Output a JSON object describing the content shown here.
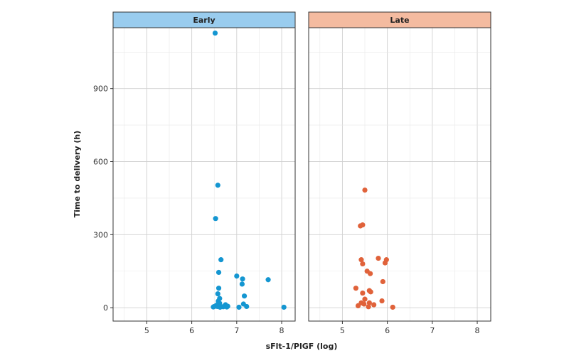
{
  "chart_data": {
    "type": "scatter",
    "xlabel": "sFlt-1/PlGF (log)",
    "ylabel": "Time to delivery (h)",
    "xlim": [
      4.25,
      8.3
    ],
    "ylim": [
      -55,
      1150
    ],
    "x_ticks": [
      5,
      6,
      7,
      8
    ],
    "y_ticks": [
      0,
      300,
      600,
      900
    ],
    "grid": true,
    "panels": [
      {
        "label": "Early",
        "strip_color": "#99CCEE",
        "point_color": "#1496D1",
        "points": [
          [
            6.52,
            1128
          ],
          [
            6.58,
            503
          ],
          [
            6.53,
            366
          ],
          [
            6.65,
            197
          ],
          [
            6.6,
            145
          ],
          [
            7.0,
            130
          ],
          [
            7.13,
            118
          ],
          [
            7.7,
            115
          ],
          [
            7.12,
            97
          ],
          [
            6.6,
            80
          ],
          [
            6.58,
            57
          ],
          [
            7.17,
            48
          ],
          [
            6.62,
            38
          ],
          [
            6.59,
            27
          ],
          [
            6.62,
            18
          ],
          [
            7.15,
            15
          ],
          [
            6.75,
            12
          ],
          [
            6.55,
            10
          ],
          [
            6.5,
            5
          ],
          [
            6.48,
            3
          ],
          [
            6.57,
            5
          ],
          [
            6.63,
            2
          ],
          [
            6.7,
            4
          ],
          [
            6.78,
            3
          ],
          [
            6.8,
            6
          ],
          [
            7.05,
            2
          ],
          [
            7.22,
            5
          ],
          [
            8.05,
            2
          ]
        ]
      },
      {
        "label": "Late",
        "strip_color": "#F4BBA0",
        "point_color": "#E0623A",
        "points": [
          [
            5.5,
            483
          ],
          [
            5.45,
            340
          ],
          [
            5.4,
            336
          ],
          [
            5.8,
            203
          ],
          [
            5.42,
            197
          ],
          [
            5.98,
            197
          ],
          [
            5.45,
            180
          ],
          [
            5.95,
            184
          ],
          [
            5.55,
            150
          ],
          [
            5.62,
            140
          ],
          [
            5.9,
            107
          ],
          [
            5.3,
            80
          ],
          [
            5.6,
            70
          ],
          [
            5.63,
            65
          ],
          [
            5.45,
            60
          ],
          [
            5.5,
            35
          ],
          [
            5.88,
            28
          ],
          [
            5.42,
            20
          ],
          [
            5.6,
            20
          ],
          [
            5.35,
            8
          ],
          [
            5.48,
            15
          ],
          [
            5.7,
            12
          ],
          [
            5.58,
            4
          ],
          [
            6.12,
            2
          ]
        ]
      }
    ]
  }
}
